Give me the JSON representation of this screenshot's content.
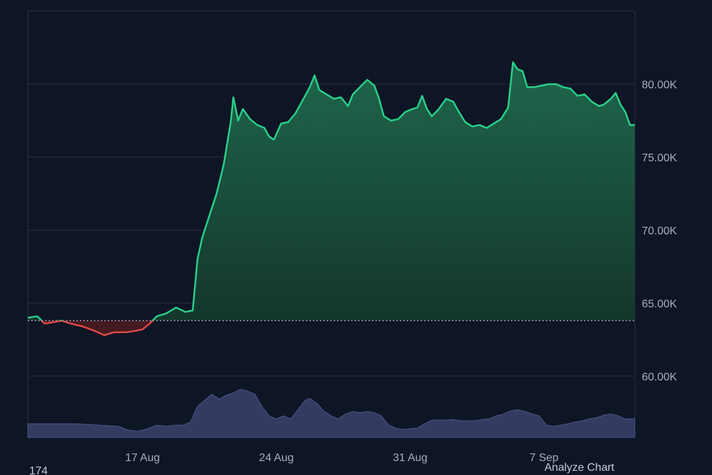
{
  "chart_data": {
    "type": "area",
    "title": "",
    "xlabel": "",
    "ylabel": "",
    "x_ticks": [
      "17 Aug",
      "24 Aug",
      "31 Aug",
      "7 Sep"
    ],
    "x_tick_index": [
      48,
      104,
      160,
      216
    ],
    "y_ticks": [
      "60.00K",
      "65.00K",
      "70.00K",
      "75.00K",
      "80.00K"
    ],
    "y_tick_values": [
      60000,
      65000,
      70000,
      75000,
      80000
    ],
    "ylim": [
      55800,
      85000
    ],
    "baseline": 63800,
    "grid": true,
    "colors": {
      "up_line": "#2ad08a",
      "down_line": "#e04a4a",
      "up_fill": "#1f6b4e",
      "down_fill": "#7a2a2e",
      "volume": "#39436b",
      "grid": "#2a3242",
      "background": "#0e1525"
    },
    "price": [
      [
        0,
        64000
      ],
      [
        4,
        64100
      ],
      [
        7,
        63600
      ],
      [
        11,
        63700
      ],
      [
        14,
        63800
      ],
      [
        18,
        63600
      ],
      [
        23,
        63400
      ],
      [
        28,
        63100
      ],
      [
        32,
        62800
      ],
      [
        36,
        63000
      ],
      [
        41,
        63000
      ],
      [
        45,
        63100
      ],
      [
        48,
        63200
      ],
      [
        51,
        63600
      ],
      [
        54,
        64100
      ],
      [
        58,
        64300
      ],
      [
        62,
        64700
      ],
      [
        66,
        64400
      ],
      [
        69,
        64500
      ],
      [
        71,
        68000
      ],
      [
        73,
        69500
      ],
      [
        76,
        71000
      ],
      [
        79,
        72500
      ],
      [
        82,
        74500
      ],
      [
        85,
        77500
      ],
      [
        86,
        79100
      ],
      [
        88,
        77500
      ],
      [
        90,
        78300
      ],
      [
        93,
        77600
      ],
      [
        96,
        77200
      ],
      [
        99,
        77000
      ],
      [
        101,
        76400
      ],
      [
        103,
        76200
      ],
      [
        106,
        77300
      ],
      [
        109,
        77400
      ],
      [
        112,
        78000
      ],
      [
        115,
        78900
      ],
      [
        118,
        79800
      ],
      [
        120,
        80600
      ],
      [
        122,
        79600
      ],
      [
        125,
        79300
      ],
      [
        128,
        79000
      ],
      [
        131,
        79100
      ],
      [
        134,
        78500
      ],
      [
        136,
        79300
      ],
      [
        139,
        79800
      ],
      [
        142,
        80300
      ],
      [
        145,
        79900
      ],
      [
        147,
        79000
      ],
      [
        149,
        77800
      ],
      [
        152,
        77500
      ],
      [
        155,
        77600
      ],
      [
        158,
        78100
      ],
      [
        161,
        78300
      ],
      [
        163,
        78400
      ],
      [
        165,
        79200
      ],
      [
        167,
        78300
      ],
      [
        169,
        77800
      ],
      [
        172,
        78300
      ],
      [
        175,
        79000
      ],
      [
        178,
        78800
      ],
      [
        180,
        78200
      ],
      [
        183,
        77400
      ],
      [
        186,
        77100
      ],
      [
        189,
        77200
      ],
      [
        192,
        77000
      ],
      [
        195,
        77300
      ],
      [
        198,
        77600
      ],
      [
        201,
        78400
      ],
      [
        203,
        81500
      ],
      [
        205,
        81000
      ],
      [
        207,
        80900
      ],
      [
        209,
        79800
      ],
      [
        212,
        79800
      ],
      [
        215,
        79900
      ],
      [
        218,
        80000
      ],
      [
        221,
        80000
      ],
      [
        224,
        79800
      ],
      [
        227,
        79700
      ],
      [
        230,
        79200
      ],
      [
        233,
        79300
      ],
      [
        236,
        78800
      ],
      [
        239,
        78500
      ],
      [
        241,
        78600
      ],
      [
        244,
        79000
      ],
      [
        246,
        79400
      ],
      [
        248,
        78600
      ],
      [
        250,
        78100
      ],
      [
        252,
        77200
      ],
      [
        254,
        77200
      ]
    ],
    "volume": [
      [
        0,
        0.22
      ],
      [
        10,
        0.22
      ],
      [
        20,
        0.22
      ],
      [
        30,
        0.2
      ],
      [
        38,
        0.18
      ],
      [
        42,
        0.12
      ],
      [
        46,
        0.1
      ],
      [
        50,
        0.14
      ],
      [
        54,
        0.2
      ],
      [
        58,
        0.18
      ],
      [
        62,
        0.2
      ],
      [
        65,
        0.2
      ],
      [
        68,
        0.25
      ],
      [
        71,
        0.5
      ],
      [
        74,
        0.6
      ],
      [
        77,
        0.7
      ],
      [
        80,
        0.62
      ],
      [
        83,
        0.68
      ],
      [
        86,
        0.72
      ],
      [
        89,
        0.78
      ],
      [
        92,
        0.75
      ],
      [
        95,
        0.7
      ],
      [
        98,
        0.5
      ],
      [
        101,
        0.35
      ],
      [
        104,
        0.3
      ],
      [
        107,
        0.35
      ],
      [
        110,
        0.3
      ],
      [
        113,
        0.45
      ],
      [
        116,
        0.6
      ],
      [
        118,
        0.63
      ],
      [
        121,
        0.55
      ],
      [
        124,
        0.42
      ],
      [
        127,
        0.35
      ],
      [
        130,
        0.3
      ],
      [
        133,
        0.38
      ],
      [
        136,
        0.42
      ],
      [
        139,
        0.4
      ],
      [
        142,
        0.42
      ],
      [
        145,
        0.4
      ],
      [
        148,
        0.35
      ],
      [
        151,
        0.2
      ],
      [
        154,
        0.15
      ],
      [
        157,
        0.13
      ],
      [
        160,
        0.14
      ],
      [
        163,
        0.15
      ],
      [
        166,
        0.22
      ],
      [
        169,
        0.28
      ],
      [
        172,
        0.28
      ],
      [
        175,
        0.28
      ],
      [
        178,
        0.29
      ],
      [
        181,
        0.27
      ],
      [
        184,
        0.27
      ],
      [
        187,
        0.27
      ],
      [
        190,
        0.29
      ],
      [
        193,
        0.3
      ],
      [
        196,
        0.35
      ],
      [
        199,
        0.38
      ],
      [
        202,
        0.43
      ],
      [
        205,
        0.45
      ],
      [
        208,
        0.42
      ],
      [
        211,
        0.38
      ],
      [
        214,
        0.35
      ],
      [
        217,
        0.2
      ],
      [
        220,
        0.18
      ],
      [
        223,
        0.2
      ],
      [
        226,
        0.22
      ],
      [
        229,
        0.25
      ],
      [
        232,
        0.27
      ],
      [
        235,
        0.3
      ],
      [
        238,
        0.32
      ],
      [
        241,
        0.36
      ],
      [
        244,
        0.38
      ],
      [
        247,
        0.35
      ],
      [
        250,
        0.3
      ],
      [
        253,
        0.3
      ],
      [
        254,
        0.31
      ]
    ],
    "x_max": 254
  },
  "footer": {
    "left_text": "174",
    "right_text": "Analyze Chart"
  }
}
